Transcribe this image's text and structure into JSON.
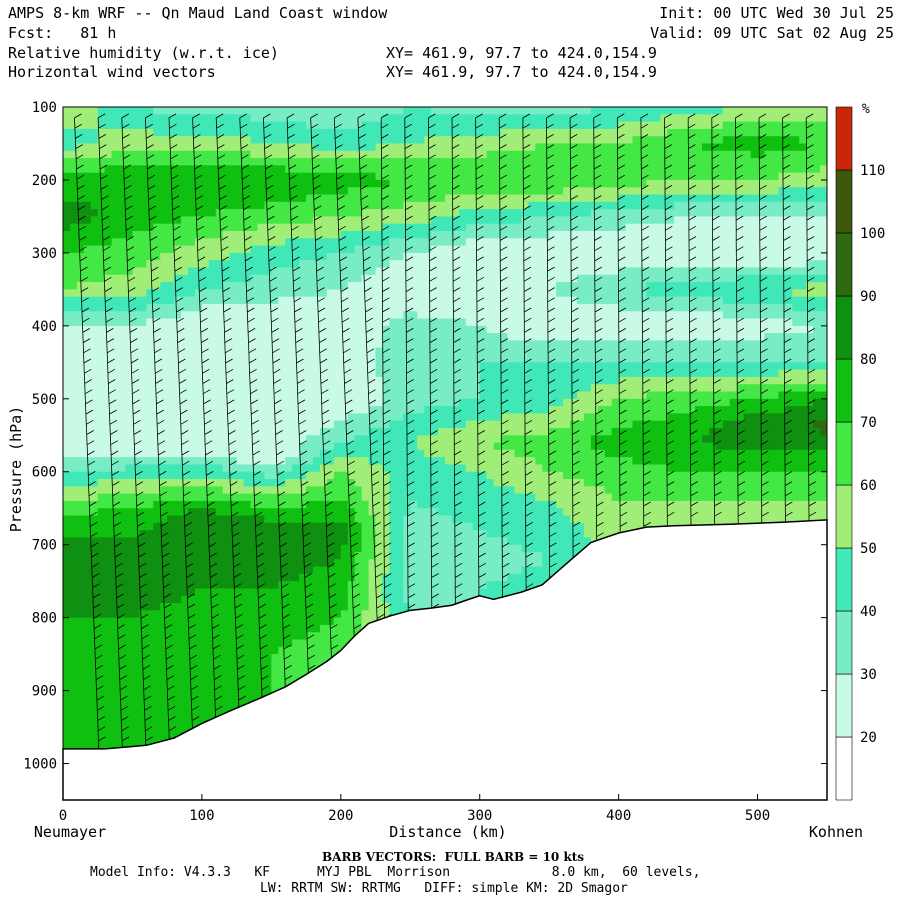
{
  "header": {
    "title": "AMPS 8-km WRF -- Qn Maud Land Coast window",
    "forecast": "Fcst:   81 h",
    "field1": "Relative humidity (w.r.t. ice)",
    "field2": "Horizontal wind vectors",
    "init": "Init: 00 UTC Wed 30 Jul 25",
    "valid": "Valid: 09 UTC Sat 02 Aug 25",
    "xy1": "XY= 461.9, 97.7 to 424.0,154.9",
    "xy2": "XY= 461.9, 97.7 to 424.0,154.9"
  },
  "footer": {
    "barb_note": "BARB VECTORS:  FULL BARB = 10 kts",
    "model_info": "Model Info: V4.3.3   KF      MYJ PBL  Morrison             8.0 km,  60 levels,",
    "physics": "LW: RRTM SW: RRTMG   DIFF: simple KM: 2D Smagor"
  },
  "chart_data": {
    "type": "heatmap",
    "xlabel": "Distance (km)",
    "ylabel": "Pressure (hPa)",
    "x_left_label": "Neumayer",
    "x_right_label": "Kohnen",
    "xlim": [
      0,
      550
    ],
    "ylim": [
      1050,
      100
    ],
    "x_ticks": [
      0,
      100,
      200,
      300,
      400,
      500
    ],
    "y_ticks": [
      100,
      200,
      300,
      400,
      500,
      600,
      700,
      800,
      900,
      1000
    ],
    "colorbar": {
      "unit": "%",
      "levels": [
        20,
        30,
        40,
        50,
        60,
        70,
        80,
        90,
        100,
        110
      ],
      "colors": [
        "#ffffff",
        "#c8fae6",
        "#78ecc4",
        "#40e8b8",
        "#a0ee78",
        "#44e844",
        "#10c010",
        "#109010",
        "#2f6a12",
        "#3c5808",
        "#c82808"
      ]
    },
    "terrain": [
      [
        0,
        980
      ],
      [
        30,
        980
      ],
      [
        60,
        975
      ],
      [
        80,
        965
      ],
      [
        100,
        945
      ],
      [
        120,
        928
      ],
      [
        140,
        912
      ],
      [
        160,
        895
      ],
      [
        175,
        878
      ],
      [
        190,
        860
      ],
      [
        200,
        845
      ],
      [
        210,
        825
      ],
      [
        220,
        808
      ],
      [
        235,
        798
      ],
      [
        250,
        790
      ],
      [
        265,
        787
      ],
      [
        280,
        783
      ],
      [
        292,
        775
      ],
      [
        300,
        770
      ],
      [
        310,
        775
      ],
      [
        320,
        770
      ],
      [
        330,
        765
      ],
      [
        345,
        755
      ],
      [
        360,
        730
      ],
      [
        380,
        697
      ],
      [
        400,
        684
      ],
      [
        420,
        676
      ],
      [
        440,
        674
      ],
      [
        480,
        672
      ],
      [
        520,
        669
      ],
      [
        550,
        666
      ]
    ],
    "rh_profiles": [
      {
        "x": 0,
        "rh": [
          [
            100,
            60
          ],
          [
            150,
            45
          ],
          [
            200,
            75
          ],
          [
            250,
            85
          ],
          [
            300,
            70
          ],
          [
            350,
            60
          ],
          [
            380,
            40
          ],
          [
            420,
            20
          ],
          [
            480,
            20
          ],
          [
            560,
            20
          ],
          [
            620,
            50
          ],
          [
            660,
            70
          ],
          [
            700,
            82
          ],
          [
            760,
            88
          ],
          [
            800,
            80
          ],
          [
            850,
            75
          ],
          [
            900,
            70
          ],
          [
            950,
            70
          ],
          [
            980,
            75
          ]
        ]
      },
      {
        "x": 50,
        "rh": [
          [
            100,
            40
          ],
          [
            150,
            55
          ],
          [
            200,
            80
          ],
          [
            250,
            75
          ],
          [
            300,
            65
          ],
          [
            350,
            55
          ],
          [
            380,
            40
          ],
          [
            420,
            20
          ],
          [
            480,
            20
          ],
          [
            560,
            20
          ],
          [
            620,
            55
          ],
          [
            660,
            75
          ],
          [
            700,
            82
          ],
          [
            760,
            86
          ],
          [
            800,
            80
          ],
          [
            850,
            75
          ],
          [
            900,
            70
          ],
          [
            950,
            70
          ],
          [
            980,
            75
          ]
        ]
      },
      {
        "x": 100,
        "rh": [
          [
            100,
            35
          ],
          [
            150,
            55
          ],
          [
            200,
            80
          ],
          [
            250,
            70
          ],
          [
            300,
            55
          ],
          [
            350,
            40
          ],
          [
            400,
            20
          ],
          [
            450,
            20
          ],
          [
            500,
            20
          ],
          [
            560,
            20
          ],
          [
            620,
            60
          ],
          [
            660,
            85
          ],
          [
            700,
            85
          ],
          [
            760,
            80
          ],
          [
            800,
            75
          ],
          [
            850,
            70
          ],
          [
            900,
            70
          ],
          [
            950,
            70
          ]
        ]
      },
      {
        "x": 150,
        "rh": [
          [
            100,
            35
          ],
          [
            150,
            50
          ],
          [
            200,
            80
          ],
          [
            250,
            65
          ],
          [
            300,
            45
          ],
          [
            350,
            35
          ],
          [
            400,
            20
          ],
          [
            450,
            20
          ],
          [
            500,
            20
          ],
          [
            580,
            20
          ],
          [
            640,
            65
          ],
          [
            680,
            88
          ],
          [
            720,
            85
          ],
          [
            760,
            80
          ],
          [
            800,
            75
          ],
          [
            850,
            70
          ],
          [
            900,
            70
          ]
        ]
      },
      {
        "x": 200,
        "rh": [
          [
            100,
            30
          ],
          [
            150,
            45
          ],
          [
            200,
            75
          ],
          [
            250,
            60
          ],
          [
            300,
            40
          ],
          [
            350,
            30
          ],
          [
            400,
            20
          ],
          [
            450,
            20
          ],
          [
            500,
            20
          ],
          [
            560,
            40
          ],
          [
            600,
            60
          ],
          [
            640,
            70
          ],
          [
            680,
            85
          ],
          [
            720,
            80
          ],
          [
            760,
            75
          ],
          [
            800,
            70
          ],
          [
            850,
            65
          ]
        ]
      },
      {
        "x": 250,
        "rh": [
          [
            100,
            40
          ],
          [
            150,
            50
          ],
          [
            200,
            70
          ],
          [
            250,
            55
          ],
          [
            300,
            30
          ],
          [
            350,
            20
          ],
          [
            400,
            35
          ],
          [
            450,
            40
          ],
          [
            500,
            35
          ],
          [
            560,
            50
          ],
          [
            600,
            45
          ],
          [
            640,
            40
          ],
          [
            680,
            35
          ],
          [
            720,
            35
          ],
          [
            760,
            35
          ],
          [
            790,
            40
          ]
        ]
      },
      {
        "x": 300,
        "rh": [
          [
            100,
            35
          ],
          [
            150,
            55
          ],
          [
            200,
            70
          ],
          [
            250,
            45
          ],
          [
            300,
            20
          ],
          [
            350,
            20
          ],
          [
            400,
            30
          ],
          [
            450,
            40
          ],
          [
            500,
            40
          ],
          [
            560,
            60
          ],
          [
            600,
            50
          ],
          [
            640,
            45
          ],
          [
            680,
            40
          ],
          [
            720,
            35
          ],
          [
            760,
            40
          ]
        ]
      },
      {
        "x": 350,
        "rh": [
          [
            100,
            35
          ],
          [
            150,
            60
          ],
          [
            200,
            70
          ],
          [
            250,
            40
          ],
          [
            300,
            20
          ],
          [
            350,
            30
          ],
          [
            400,
            20
          ],
          [
            450,
            40
          ],
          [
            500,
            45
          ],
          [
            560,
            65
          ],
          [
            600,
            60
          ],
          [
            640,
            50
          ],
          [
            680,
            45
          ],
          [
            720,
            40
          ],
          [
            760,
            45
          ]
        ]
      },
      {
        "x": 400,
        "rh": [
          [
            100,
            40
          ],
          [
            150,
            60
          ],
          [
            200,
            65
          ],
          [
            250,
            35
          ],
          [
            300,
            20
          ],
          [
            350,
            40
          ],
          [
            400,
            20
          ],
          [
            450,
            40
          ],
          [
            500,
            60
          ],
          [
            560,
            75
          ],
          [
            600,
            65
          ],
          [
            640,
            60
          ],
          [
            670,
            55
          ]
        ]
      },
      {
        "x": 450,
        "rh": [
          [
            100,
            45
          ],
          [
            150,
            70
          ],
          [
            200,
            60
          ],
          [
            250,
            30
          ],
          [
            300,
            20
          ],
          [
            350,
            45
          ],
          [
            400,
            20
          ],
          [
            450,
            40
          ],
          [
            500,
            65
          ],
          [
            560,
            80
          ],
          [
            600,
            70
          ],
          [
            640,
            60
          ],
          [
            670,
            55
          ]
        ]
      },
      {
        "x": 500,
        "rh": [
          [
            100,
            50
          ],
          [
            150,
            75
          ],
          [
            200,
            60
          ],
          [
            250,
            30
          ],
          [
            300,
            20
          ],
          [
            350,
            50
          ],
          [
            400,
            25
          ],
          [
            450,
            40
          ],
          [
            500,
            70
          ],
          [
            540,
            90
          ],
          [
            600,
            70
          ],
          [
            640,
            60
          ],
          [
            665,
            55
          ]
        ]
      },
      {
        "x": 550,
        "rh": [
          [
            100,
            50
          ],
          [
            150,
            70
          ],
          [
            200,
            55
          ],
          [
            250,
            30
          ],
          [
            300,
            20
          ],
          [
            350,
            55
          ],
          [
            400,
            30
          ],
          [
            450,
            40
          ],
          [
            500,
            80
          ],
          [
            540,
            92
          ],
          [
            600,
            70
          ],
          [
            640,
            60
          ],
          [
            665,
            55
          ]
        ]
      }
    ]
  }
}
